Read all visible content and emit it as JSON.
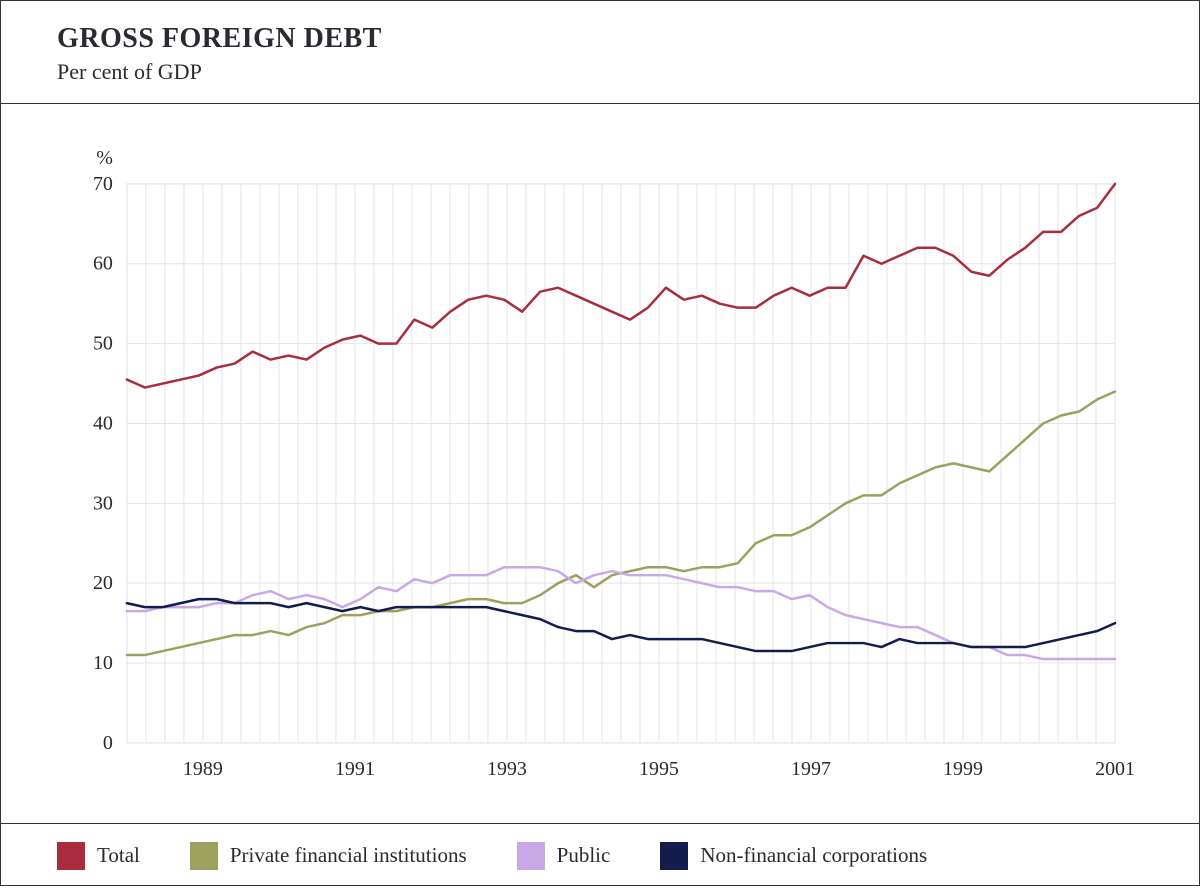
{
  "chart": {
    "type": "line",
    "title": "GROSS FOREIGN DEBT",
    "subtitle": "Per cent of GDP",
    "title_fontsize": 28,
    "subtitle_fontsize": 22,
    "y_unit_label": "%",
    "background_color": "#ffffff",
    "plot_background": "#ffffff",
    "border_color": "#333333",
    "grid_color": "#e4e4ea",
    "text_color": "#2a2a30",
    "line_width": 2.5,
    "axis": {
      "x_start": 1988.0,
      "x_end": 2001.0,
      "x_tick_step": 2,
      "x_tick_labels": [
        "1989",
        "1991",
        "1993",
        "1995",
        "1997",
        "1999",
        "2001"
      ],
      "x_tick_values": [
        1989,
        1991,
        1993,
        1995,
        1997,
        1999,
        2001
      ],
      "y_min": 0,
      "y_max": 70,
      "y_tick_step": 10,
      "y_tick_labels": [
        "0",
        "10",
        "20",
        "30",
        "40",
        "50",
        "60",
        "70"
      ],
      "label_fontsize": 20,
      "minor_x_gridlines_per_year": 4
    },
    "series": [
      {
        "name": "Total",
        "color": "#a92d3f",
        "data": [
          45.5,
          44.5,
          45,
          45.5,
          46,
          47,
          47.5,
          49,
          48,
          48.5,
          48,
          49.5,
          50.5,
          51,
          50,
          50,
          53,
          52,
          54,
          55.5,
          56,
          55.5,
          54,
          56.5,
          57,
          56,
          55,
          54,
          53,
          54.5,
          57,
          55.5,
          56,
          55,
          54.5,
          54.5,
          56,
          57,
          56,
          57,
          57,
          61,
          60,
          61,
          62,
          62,
          61,
          59,
          58.5,
          60.5,
          62,
          64,
          64,
          66,
          67,
          70
        ]
      },
      {
        "name": "Private financial institutions",
        "color": "#9ea05e",
        "data": [
          11,
          11,
          11.5,
          12,
          12.5,
          13,
          13.5,
          13.5,
          14,
          13.5,
          14.5,
          15,
          16,
          16,
          16.5,
          16.5,
          17,
          17,
          17.5,
          18,
          18,
          17.5,
          17.5,
          18.5,
          20,
          21,
          19.5,
          21,
          21.5,
          22,
          22,
          21.5,
          22,
          22,
          22.5,
          25,
          26,
          26,
          27,
          28.5,
          30,
          31,
          31,
          32.5,
          33.5,
          34.5,
          35,
          34.5,
          34,
          36,
          38,
          40,
          41,
          41.5,
          43,
          44
        ]
      },
      {
        "name": "Public",
        "color": "#c9a8e6",
        "data": [
          16.5,
          16.5,
          17,
          17,
          17,
          17.5,
          17.5,
          18.5,
          19,
          18,
          18.5,
          18,
          17,
          18,
          19.5,
          19,
          20.5,
          20,
          21,
          21,
          21,
          22,
          22,
          22,
          21.5,
          20,
          21,
          21.5,
          21,
          21,
          21,
          20.5,
          20,
          19.5,
          19.5,
          19,
          19,
          18,
          18.5,
          17,
          16,
          15.5,
          15,
          14.5,
          14.5,
          13.5,
          12.5,
          12,
          12,
          11,
          11,
          10.5,
          10.5,
          10.5,
          10.5,
          10.5
        ]
      },
      {
        "name": "Non-financial corporations",
        "color": "#141b4d",
        "data": [
          17.5,
          17,
          17,
          17.5,
          18,
          18,
          17.5,
          17.5,
          17.5,
          17,
          17.5,
          17,
          16.5,
          17,
          16.5,
          17,
          17,
          17,
          17,
          17,
          17,
          16.5,
          16,
          15.5,
          14.5,
          14,
          14,
          13,
          13.5,
          13,
          13,
          13,
          13,
          12.5,
          12,
          11.5,
          11.5,
          11.5,
          12,
          12.5,
          12.5,
          12.5,
          12,
          13,
          12.5,
          12.5,
          12.5,
          12,
          12,
          12,
          12,
          12.5,
          13,
          13.5,
          14,
          15
        ]
      }
    ],
    "legend": {
      "position": "bottom",
      "swatch_size": 28,
      "fontsize": 21,
      "items": [
        {
          "label": "Total",
          "color": "#a92d3f"
        },
        {
          "label": "Private financial institutions",
          "color": "#9ea05e"
        },
        {
          "label": "Public",
          "color": "#c9a8e6"
        },
        {
          "label": "Non-financial corporations",
          "color": "#141b4d"
        }
      ]
    }
  }
}
